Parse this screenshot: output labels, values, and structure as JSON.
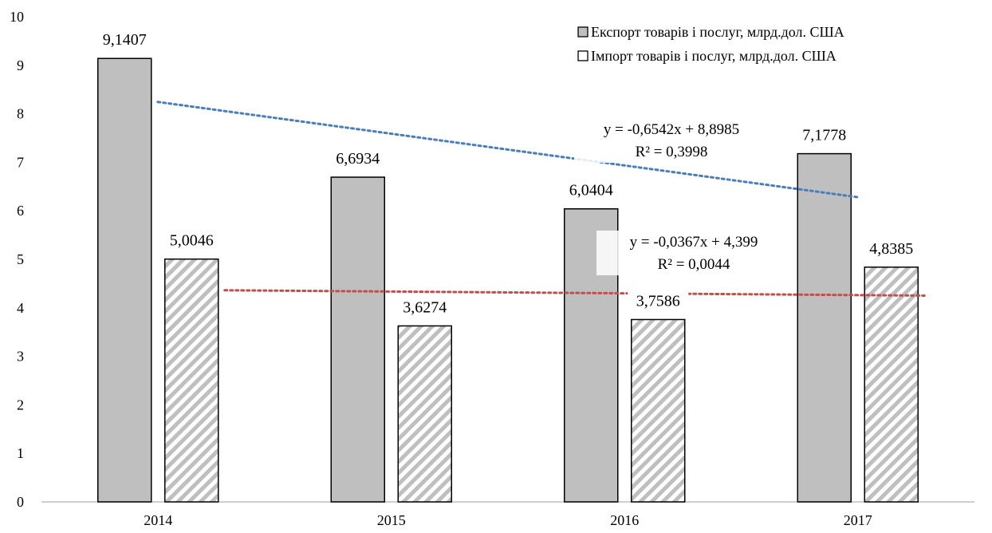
{
  "chart_data": {
    "type": "bar",
    "categories": [
      "2014",
      "2015",
      "2016",
      "2017"
    ],
    "series": [
      {
        "name": "Експорт  товарів і послуг, млрд.дол.  США",
        "values": [
          9.1407,
          6.6934,
          6.0404,
          7.1778
        ],
        "value_labels": [
          "9,1407",
          "6,6934",
          "6,0404",
          "7,1778"
        ],
        "fill": "#bfbfbf",
        "pattern": "solid"
      },
      {
        "name": "Імпорт  товарів і послуг, млрд.дол. США",
        "values": [
          5.0046,
          3.6274,
          3.7586,
          4.8385
        ],
        "value_labels": [
          "5,0046",
          "3,6274",
          "3,7586",
          "4,8385"
        ],
        "fill": "#bfbfbf",
        "pattern": "diagonal-stripes"
      }
    ],
    "y_ticks": [
      "0",
      "1",
      "2",
      "3",
      "4",
      "5",
      "6",
      "7",
      "8",
      "9",
      "10"
    ],
    "ylim": [
      0,
      10
    ],
    "grid": false,
    "legend_position": "top-right",
    "trendlines": [
      {
        "series": 0,
        "type": "linear",
        "slope": -0.6542,
        "intercept": 8.8985,
        "equation": "y = -0,6542x + 8,8985",
        "r2": "R² = 0,3998",
        "color": "#4a7ebb"
      },
      {
        "series": 1,
        "type": "linear",
        "slope": -0.0367,
        "intercept": 4.399,
        "equation": "y = -0,0367x + 4,399",
        "r2": "R² = 0,0044",
        "color": "#c0504d"
      }
    ]
  }
}
